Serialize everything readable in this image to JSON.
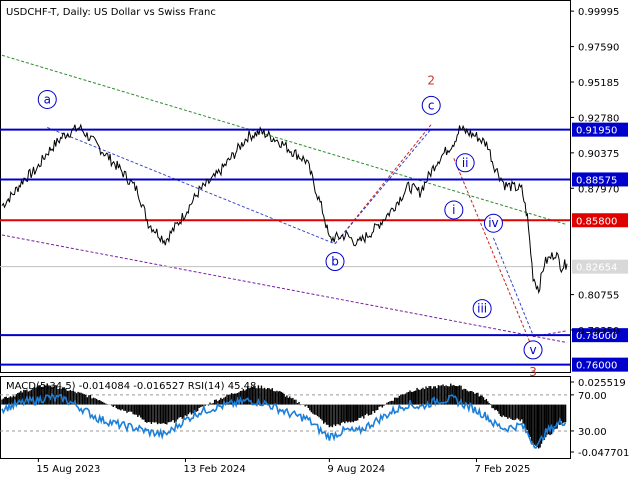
{
  "title": "USDCHF-T, Daily:  US Dollar vs Swiss Franc",
  "indicator_label": "MACD(5,34,5) -0.014084 -0.016527 RSI(14) 45.48",
  "colors": {
    "price": "#000000",
    "blue_level": "#0000cc",
    "red_level": "#e00000",
    "current_price": "#c0c0c0",
    "wave_blue": "#0000cc",
    "wave_red": "#c0392b",
    "trend_green": "#2e8b2e",
    "trend_blue": "#3344cc",
    "trend_purple": "#7a1fa2",
    "trend_red": "#d02020",
    "rsi": "#1e7fd8",
    "macd_hist": "#000000"
  },
  "chart_data": {
    "type": "line",
    "symbol": "USDCHF-T",
    "timeframe": "Daily",
    "price_axis": {
      "ticks": [
        "0.99995",
        "0.97590",
        "0.95185",
        "0.92780",
        "0.90375",
        "0.87970",
        "0.80755",
        "0.78350"
      ],
      "ylim": [
        0.755,
        1.0075
      ]
    },
    "x_labels": [
      "15 Aug 2023",
      "13 Feb 2024",
      "9 Aug 2024",
      "7 Feb 2025"
    ],
    "series": [
      {
        "x": [
          "2023-07-01",
          "2023-07-15",
          "2023-07-28",
          "2023-08-12",
          "2023-08-26",
          "2023-09-16",
          "2023-10-05",
          "2023-10-28",
          "2023-11-25",
          "2023-12-16",
          "2023-12-29",
          "2024-01-19",
          "2024-02-09",
          "2024-03-01",
          "2024-03-22",
          "2024-04-12",
          "2024-04-30",
          "2024-05-17",
          "2024-06-07",
          "2024-06-21",
          "2024-07-12",
          "2024-08-02",
          "2024-08-09",
          "2024-08-30",
          "2024-09-13",
          "2024-10-04",
          "2024-10-25",
          "2024-11-15",
          "2024-11-29",
          "2024-12-20",
          "2025-01-10",
          "2025-01-17",
          "2025-02-07",
          "2025-02-21",
          "2025-02-28",
          "2025-03-14",
          "2025-04-04",
          "2025-04-11",
          "2025-04-18",
          "2025-04-25",
          "2025-05-02",
          "2025-05-16",
          "2025-05-23",
          "2025-05-30"
        ],
        "values": [
          0.868,
          0.876,
          0.886,
          0.892,
          0.904,
          0.916,
          0.921,
          0.908,
          0.892,
          0.878,
          0.856,
          0.844,
          0.86,
          0.878,
          0.888,
          0.902,
          0.915,
          0.918,
          0.912,
          0.906,
          0.898,
          0.862,
          0.845,
          0.848,
          0.842,
          0.852,
          0.865,
          0.881,
          0.877,
          0.898,
          0.911,
          0.92,
          0.915,
          0.909,
          0.896,
          0.882,
          0.879,
          0.86,
          0.82,
          0.811,
          0.829,
          0.836,
          0.8265,
          0.8285
        ]
      }
    ],
    "current_price": {
      "value": 0.8265,
      "label": "0.82654"
    },
    "levels": [
      {
        "value": 0.9195,
        "label": "0.91950",
        "color": "blue"
      },
      {
        "value": 0.8857,
        "label": "0.88575",
        "color": "blue"
      },
      {
        "value": 0.858,
        "label": "0.85800",
        "color": "red"
      },
      {
        "value": 0.78,
        "label": "0.78000",
        "color": "blue"
      },
      {
        "value": 0.76,
        "label": "0.76000",
        "color": "blue"
      }
    ],
    "wave_labels": [
      {
        "text": "a",
        "circled": true,
        "color": "blue",
        "x": "2023-08-26",
        "y": 0.94
      },
      {
        "text": "b",
        "circled": true,
        "color": "blue",
        "x": "2024-08-16",
        "y": 0.83
      },
      {
        "text": "c",
        "circled": true,
        "color": "blue",
        "x": "2024-12-13",
        "y": 0.936
      },
      {
        "text": "2",
        "circled": false,
        "color": "red",
        "x": "2024-12-13",
        "y": 0.953
      },
      {
        "text": "i",
        "circled": true,
        "color": "blue",
        "x": "2025-01-10",
        "y": 0.865
      },
      {
        "text": "ii",
        "circled": true,
        "color": "blue",
        "x": "2025-01-24",
        "y": 0.897
      },
      {
        "text": "iii",
        "circled": true,
        "color": "blue",
        "x": "2025-02-14",
        "y": 0.798
      },
      {
        "text": "iv",
        "circled": true,
        "color": "blue",
        "x": "2025-02-28",
        "y": 0.856
      },
      {
        "text": "v",
        "circled": true,
        "color": "blue",
        "x": "2025-04-18",
        "y": 0.77
      },
      {
        "text": "3",
        "circled": false,
        "color": "red",
        "x": "2025-04-18",
        "y": 0.755
      }
    ],
    "trend_lines": [
      {
        "color": "green",
        "dash": true,
        "from": {
          "x": "2023-07-01",
          "y": 0.97
        },
        "to": {
          "x": "2025-05-30",
          "y": 0.855
        }
      },
      {
        "color": "blue",
        "dash": true,
        "from": {
          "x": "2023-08-26",
          "y": 0.921
        },
        "to": {
          "x": "2024-08-16",
          "y": 0.842
        }
      },
      {
        "color": "purple",
        "dash": true,
        "from": {
          "x": "2023-07-01",
          "y": 0.848
        },
        "to": {
          "x": "2025-05-30",
          "y": 0.775
        }
      },
      {
        "color": "red",
        "dash": true,
        "from": {
          "x": "2024-08-16",
          "y": 0.842
        },
        "to": {
          "x": "2024-12-13",
          "y": 0.923
        }
      },
      {
        "color": "blue",
        "dash": true,
        "from": {
          "x": "2024-08-16",
          "y": 0.842
        },
        "to": {
          "x": "2024-12-13",
          "y": 0.92
        }
      },
      {
        "color": "blue",
        "dash": true,
        "from": {
          "x": "2025-02-28",
          "y": 0.846
        },
        "to": {
          "x": "2025-04-18",
          "y": 0.78
        }
      },
      {
        "color": "red",
        "dash": true,
        "from": {
          "x": "2025-01-10",
          "y": 0.9
        },
        "to": {
          "x": "2025-04-18",
          "y": 0.77
        }
      },
      {
        "color": "purple",
        "dash": true,
        "from": {
          "x": "2025-04-18",
          "y": 0.779
        },
        "to": {
          "x": "2025-05-30",
          "y": 0.783
        }
      }
    ],
    "indicator": {
      "name": "MACD(5,34,5) RSI(14)",
      "macd_main": -0.014084,
      "macd_signal": -0.016527,
      "rsi": 45.48,
      "axis_ticks": [
        "0.025519",
        "70.00",
        "30.00",
        "-0.047701"
      ],
      "rsi_levels": [
        70,
        30
      ],
      "macd_hist": [
        0.006,
        0.008,
        0.012,
        0.015,
        0.018,
        0.014,
        0.01,
        0.005,
        -0.004,
        -0.01,
        -0.016,
        -0.018,
        -0.012,
        -0.004,
        0.004,
        0.01,
        0.015,
        0.016,
        0.012,
        0.006,
        -0.002,
        -0.016,
        -0.02,
        -0.016,
        -0.014,
        -0.006,
        0.004,
        0.012,
        0.014,
        0.016,
        0.018,
        0.016,
        0.01,
        0.004,
        -0.004,
        -0.012,
        -0.014,
        -0.024,
        -0.036,
        -0.04,
        -0.03,
        -0.022,
        -0.016,
        -0.014
      ],
      "rsi_values": [
        60,
        64,
        68,
        70,
        74,
        72,
        62,
        48,
        40,
        36,
        32,
        28,
        44,
        56,
        62,
        66,
        70,
        68,
        60,
        54,
        48,
        30,
        26,
        34,
        32,
        44,
        56,
        66,
        62,
        70,
        72,
        68,
        58,
        50,
        42,
        36,
        40,
        30,
        18,
        16,
        30,
        40,
        44,
        45
      ]
    }
  }
}
